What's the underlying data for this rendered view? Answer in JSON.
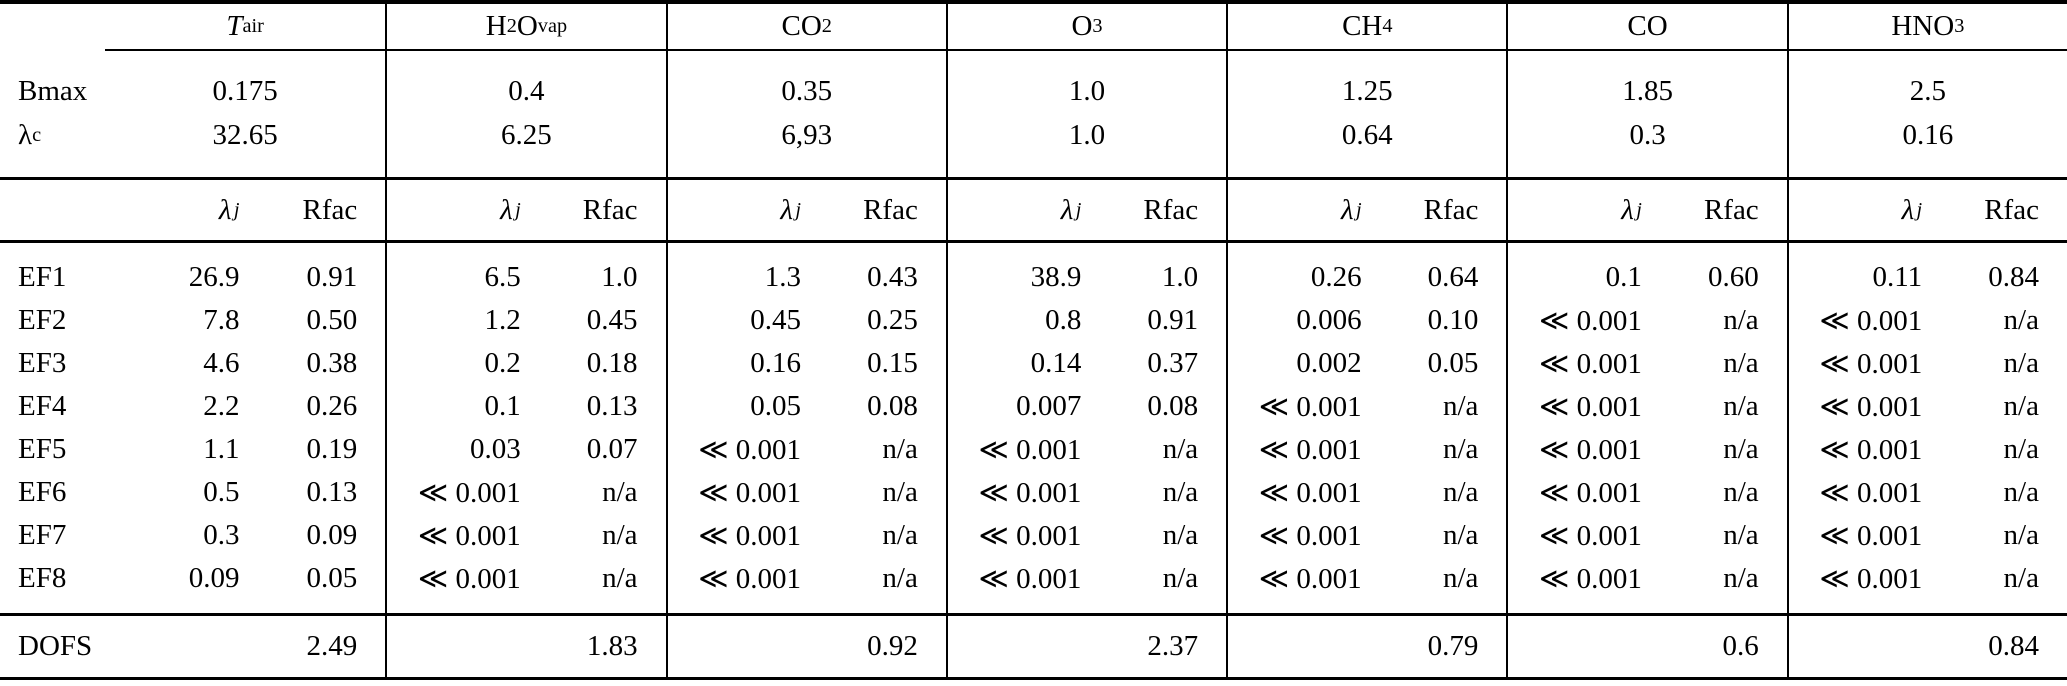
{
  "colors": {
    "text": "#000000",
    "rule": "#000000",
    "background": "#ffffff"
  },
  "columns": {
    "row_label_header": "",
    "gases": [
      {
        "name": "T_air",
        "plain": "Tair",
        "segments": [
          {
            "t": "T",
            "i": true
          },
          {
            "t": "air",
            "sub": true
          }
        ]
      },
      {
        "name": "H2O_vap",
        "plain": "H2Ovap",
        "segments": [
          {
            "t": "H"
          },
          {
            "t": "2",
            "sub": true
          },
          {
            "t": "O"
          },
          {
            "t": "vap",
            "sub": true
          }
        ]
      },
      {
        "name": "CO2",
        "plain": "CO2",
        "segments": [
          {
            "t": "CO"
          },
          {
            "t": "2",
            "sub": true
          }
        ]
      },
      {
        "name": "O3",
        "plain": "O3",
        "segments": [
          {
            "t": "O"
          },
          {
            "t": "3",
            "sub": true
          }
        ]
      },
      {
        "name": "CH4",
        "plain": "CH4",
        "segments": [
          {
            "t": "CH"
          },
          {
            "t": "4",
            "sub": true
          }
        ]
      },
      {
        "name": "CO",
        "plain": "CO",
        "segments": [
          {
            "t": "CO"
          }
        ]
      },
      {
        "name": "HNO3",
        "plain": "HNO3",
        "segments": [
          {
            "t": "HNO"
          },
          {
            "t": "3",
            "sub": true
          }
        ]
      }
    ]
  },
  "params": {
    "rows": [
      {
        "label": "Bmax",
        "label_segments": [
          {
            "t": "Bmax"
          }
        ],
        "values": [
          "0.175",
          "0.4",
          "0.35",
          "1.0",
          "1.25",
          "1.85",
          "2.5"
        ]
      },
      {
        "label": "λc",
        "label_segments": [
          {
            "t": "λ"
          },
          {
            "t": "c",
            "sub": true
          }
        ],
        "values": [
          "32.65",
          "6.25",
          "6,93",
          "1.0",
          "0.64",
          "0.3",
          "0.16"
        ]
      }
    ]
  },
  "subheader": {
    "lambda_j": "λj",
    "lambda_j_segments": [
      {
        "t": "λ",
        "i": true
      },
      {
        "t": "j",
        "sub": true,
        "i": true,
        "sp": true
      }
    ],
    "rfac": "Rfac"
  },
  "ef_rows": [
    {
      "label": "EF1",
      "cells": [
        [
          "26.9",
          "0.91"
        ],
        [
          "6.5",
          "1.0"
        ],
        [
          "1.3",
          "0.43"
        ],
        [
          "38.9",
          "1.0"
        ],
        [
          "0.26",
          "0.64"
        ],
        [
          "0.1",
          "0.60"
        ],
        [
          "0.11",
          "0.84"
        ]
      ]
    },
    {
      "label": "EF2",
      "cells": [
        [
          "7.8",
          "0.50"
        ],
        [
          "1.2",
          "0.45"
        ],
        [
          "0.45",
          "0.25"
        ],
        [
          "0.8",
          "0.91"
        ],
        [
          "0.006",
          "0.10"
        ],
        [
          "≪ 0.001",
          "n/a"
        ],
        [
          "≪ 0.001",
          "n/a"
        ]
      ]
    },
    {
      "label": "EF3",
      "cells": [
        [
          "4.6",
          "0.38"
        ],
        [
          "0.2",
          "0.18"
        ],
        [
          "0.16",
          "0.15"
        ],
        [
          "0.14",
          "0.37"
        ],
        [
          "0.002",
          "0.05"
        ],
        [
          "≪ 0.001",
          "n/a"
        ],
        [
          "≪ 0.001",
          "n/a"
        ]
      ]
    },
    {
      "label": "EF4",
      "cells": [
        [
          "2.2",
          "0.26"
        ],
        [
          "0.1",
          "0.13"
        ],
        [
          "0.05",
          "0.08"
        ],
        [
          "0.007",
          "0.08"
        ],
        [
          "≪ 0.001",
          "n/a"
        ],
        [
          "≪ 0.001",
          "n/a"
        ],
        [
          "≪ 0.001",
          "n/a"
        ]
      ]
    },
    {
      "label": "EF5",
      "cells": [
        [
          "1.1",
          "0.19"
        ],
        [
          "0.03",
          "0.07"
        ],
        [
          "≪ 0.001",
          "n/a"
        ],
        [
          "≪ 0.001",
          "n/a"
        ],
        [
          "≪ 0.001",
          "n/a"
        ],
        [
          "≪ 0.001",
          "n/a"
        ],
        [
          "≪ 0.001",
          "n/a"
        ]
      ]
    },
    {
      "label": "EF6",
      "cells": [
        [
          "0.5",
          "0.13"
        ],
        [
          "≪ 0.001",
          "n/a"
        ],
        [
          "≪ 0.001",
          "n/a"
        ],
        [
          "≪ 0.001",
          "n/a"
        ],
        [
          "≪ 0.001",
          "n/a"
        ],
        [
          "≪ 0.001",
          "n/a"
        ],
        [
          "≪ 0.001",
          "n/a"
        ]
      ]
    },
    {
      "label": "EF7",
      "cells": [
        [
          "0.3",
          "0.09"
        ],
        [
          "≪ 0.001",
          "n/a"
        ],
        [
          "≪ 0.001",
          "n/a"
        ],
        [
          "≪ 0.001",
          "n/a"
        ],
        [
          "≪ 0.001",
          "n/a"
        ],
        [
          "≪ 0.001",
          "n/a"
        ],
        [
          "≪ 0.001",
          "n/a"
        ]
      ]
    },
    {
      "label": "EF8",
      "cells": [
        [
          "0.09",
          "0.05"
        ],
        [
          "≪ 0.001",
          "n/a"
        ],
        [
          "≪ 0.001",
          "n/a"
        ],
        [
          "≪ 0.001",
          "n/a"
        ],
        [
          "≪ 0.001",
          "n/a"
        ],
        [
          "≪ 0.001",
          "n/a"
        ],
        [
          "≪ 0.001",
          "n/a"
        ]
      ]
    }
  ],
  "dofs": {
    "label": "DOFS",
    "values": [
      "2.49",
      "1.83",
      "0.92",
      "2.37",
      "0.79",
      "0.6",
      "0.84"
    ]
  }
}
